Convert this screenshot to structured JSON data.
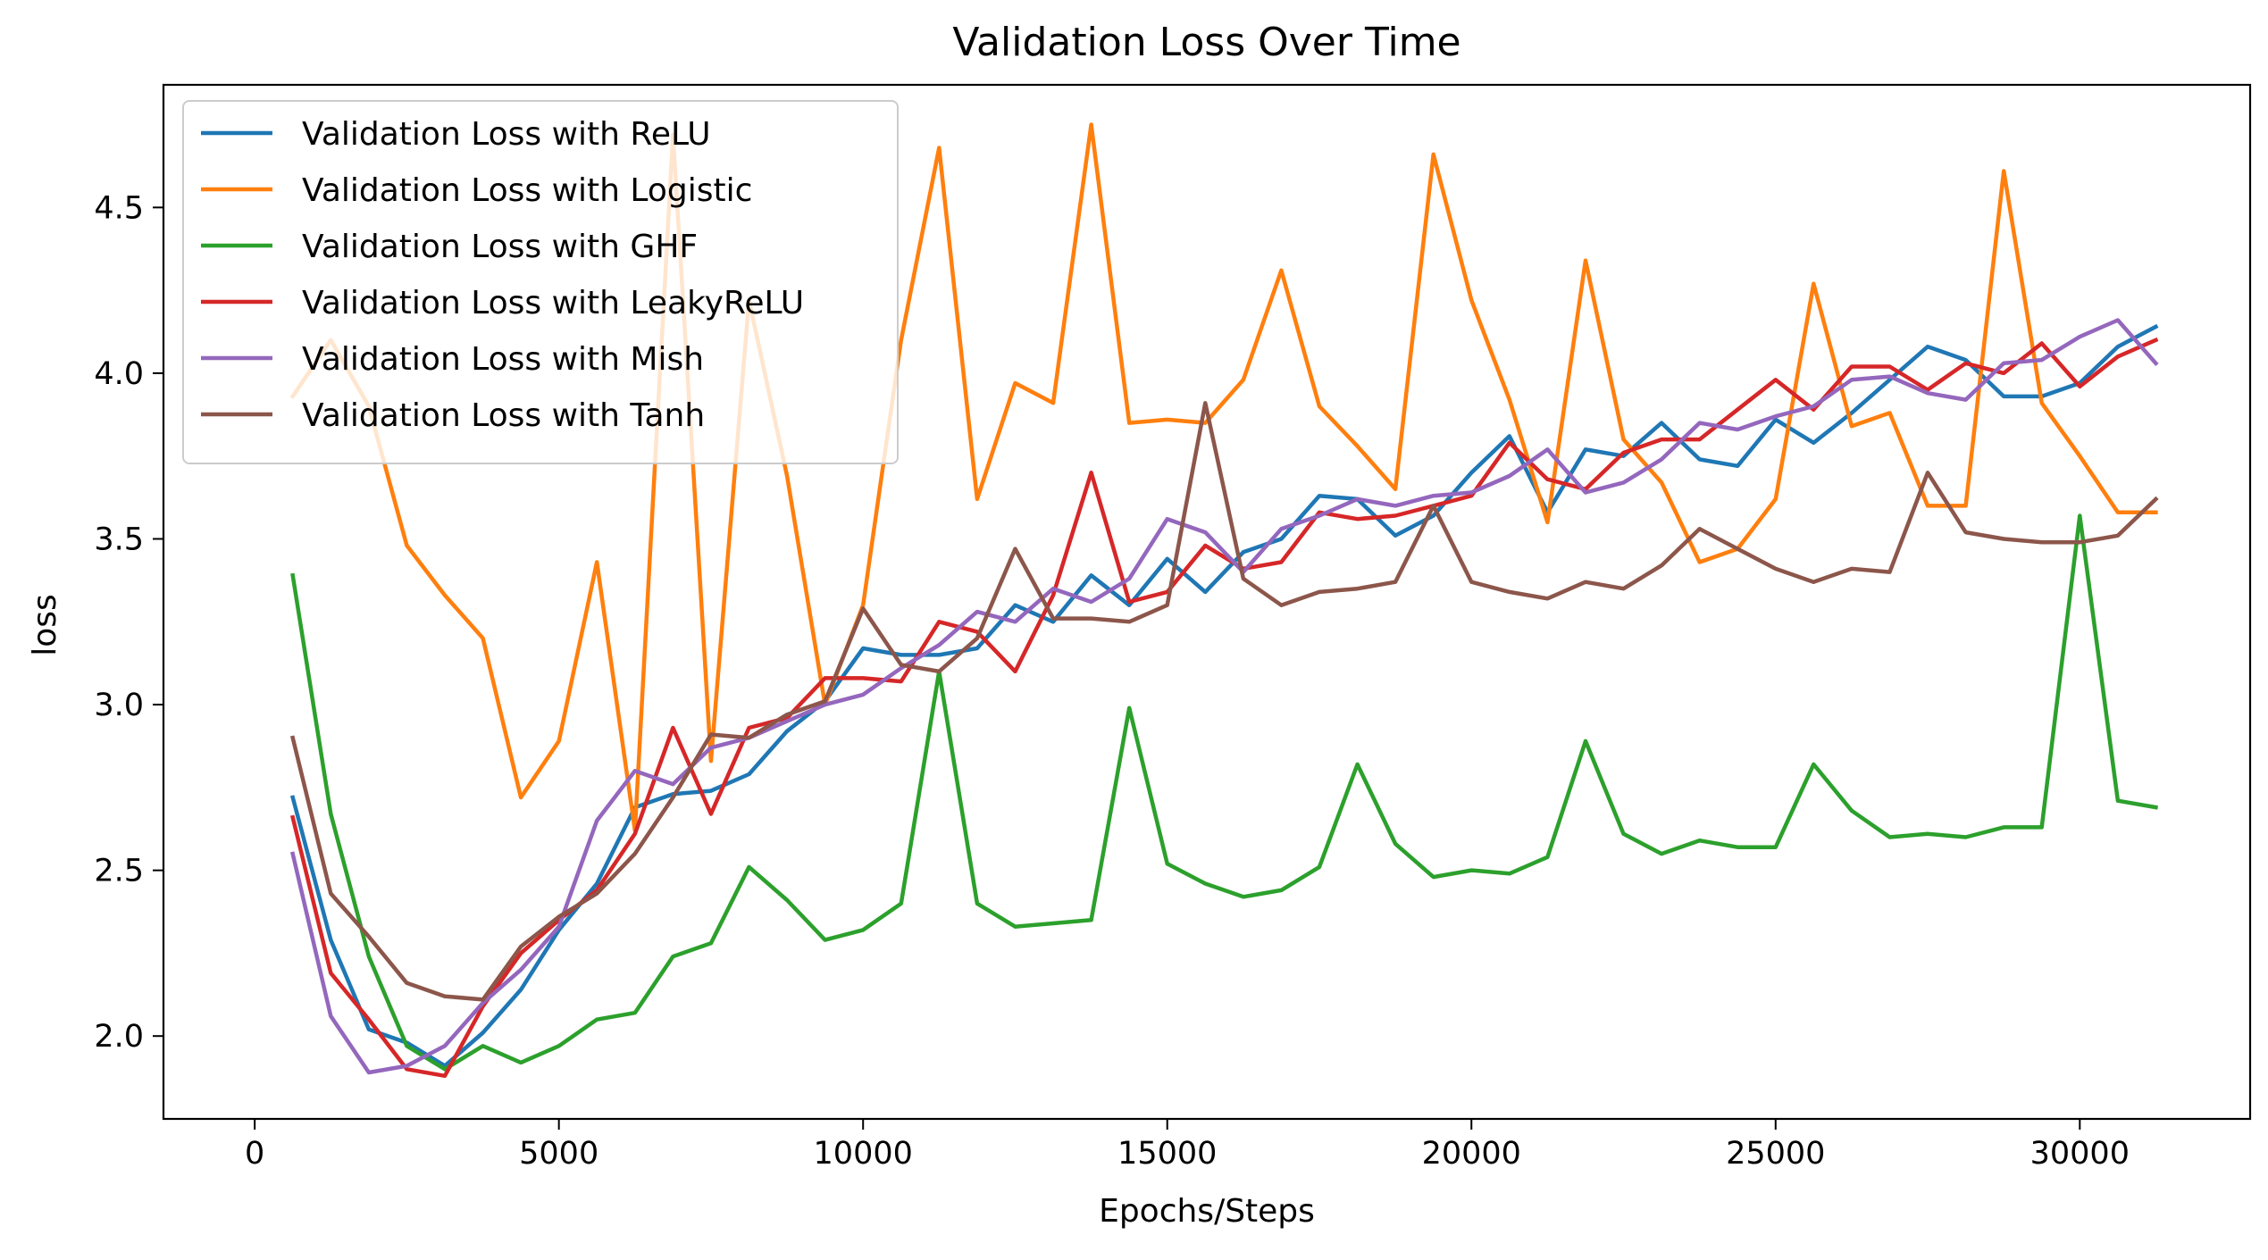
{
  "chart_data": {
    "type": "line",
    "title": "Validation Loss Over Time",
    "xlabel": "Epochs/Steps",
    "ylabel": "loss",
    "xlim": [
      -1500,
      32800
    ],
    "ylim": [
      1.75,
      4.87
    ],
    "xticks": [
      0,
      5000,
      10000,
      15000,
      20000,
      25000,
      30000
    ],
    "xtick_labels": [
      "0",
      "5000",
      "10000",
      "15000",
      "20000",
      "25000",
      "30000"
    ],
    "yticks": [
      2.0,
      2.5,
      3.0,
      3.5,
      4.0,
      4.5
    ],
    "ytick_labels": [
      "2.0",
      "2.5",
      "3.0",
      "3.5",
      "4.0",
      "4.5"
    ],
    "grid": false,
    "legend_position": "top-left",
    "x": [
      625,
      1250,
      1875,
      2500,
      3125,
      3750,
      4375,
      5000,
      5625,
      6250,
      6875,
      7500,
      8125,
      8750,
      9375,
      10000,
      10625,
      11250,
      11875,
      12500,
      13125,
      13750,
      14375,
      15000,
      15625,
      16250,
      16875,
      17500,
      18125,
      18750,
      19375,
      20000,
      20625,
      21250,
      21875,
      22500,
      23125,
      23750,
      24375,
      25000,
      25625,
      26250,
      26875,
      27500,
      28125,
      28750,
      29375,
      30000,
      30625,
      31250
    ],
    "series": [
      {
        "name": "Validation Loss with ReLU",
        "color": "#1f77b4",
        "values": [
          2.72,
          2.29,
          2.02,
          1.98,
          1.91,
          2.01,
          2.14,
          2.32,
          2.46,
          2.69,
          2.73,
          2.74,
          2.79,
          2.92,
          3.01,
          3.17,
          3.15,
          3.15,
          3.17,
          3.3,
          3.25,
          3.39,
          3.3,
          3.44,
          3.34,
          3.46,
          3.5,
          3.63,
          3.62,
          3.51,
          3.57,
          3.7,
          3.81,
          3.58,
          3.77,
          3.75,
          3.85,
          3.74,
          3.72,
          3.86,
          3.79,
          3.88,
          3.98,
          4.08,
          4.04,
          3.93,
          3.93,
          3.97,
          4.08,
          4.14
        ]
      },
      {
        "name": "Validation Loss with Logistic",
        "color": "#ff7f0e",
        "values": [
          3.93,
          4.1,
          3.9,
          3.48,
          3.33,
          3.2,
          2.72,
          2.89,
          3.43,
          2.62,
          4.72,
          2.83,
          4.22,
          3.69,
          3.0,
          3.3,
          4.1,
          4.68,
          3.62,
          3.97,
          3.91,
          4.75,
          3.85,
          3.86,
          3.85,
          3.98,
          4.31,
          3.9,
          3.78,
          3.65,
          4.66,
          4.22,
          3.92,
          3.55,
          4.34,
          3.8,
          3.67,
          3.43,
          3.47,
          3.62,
          4.27,
          3.84,
          3.88,
          3.6,
          3.6,
          4.61,
          3.91,
          3.75,
          3.58,
          3.58
        ]
      },
      {
        "name": "Validation Loss with GHF",
        "color": "#2ca02c",
        "values": [
          3.39,
          2.67,
          2.24,
          1.97,
          1.9,
          1.97,
          1.92,
          1.97,
          2.05,
          2.07,
          2.24,
          2.28,
          2.51,
          2.41,
          2.29,
          2.32,
          2.4,
          3.1,
          2.4,
          2.33,
          2.34,
          2.35,
          2.99,
          2.52,
          2.46,
          2.42,
          2.44,
          2.51,
          2.82,
          2.58,
          2.48,
          2.5,
          2.49,
          2.54,
          2.89,
          2.61,
          2.55,
          2.59,
          2.57,
          2.57,
          2.82,
          2.68,
          2.6,
          2.61,
          2.6,
          2.63,
          2.63,
          3.57,
          2.71,
          2.69
        ]
      },
      {
        "name": "Validation Loss with LeakyReLU",
        "color": "#d62728",
        "values": [
          2.66,
          2.19,
          2.05,
          1.9,
          1.88,
          2.09,
          2.25,
          2.35,
          2.44,
          2.61,
          2.93,
          2.67,
          2.93,
          2.96,
          3.08,
          3.08,
          3.07,
          3.25,
          3.22,
          3.1,
          3.33,
          3.7,
          3.31,
          3.34,
          3.48,
          3.41,
          3.43,
          3.58,
          3.56,
          3.57,
          3.6,
          3.63,
          3.79,
          3.68,
          3.65,
          3.76,
          3.8,
          3.8,
          3.89,
          3.98,
          3.89,
          4.02,
          4.02,
          3.95,
          4.03,
          4.0,
          4.09,
          3.96,
          4.05,
          4.1
        ]
      },
      {
        "name": "Validation Loss with Mish",
        "color": "#9467bd",
        "values": [
          2.55,
          2.06,
          1.89,
          1.91,
          1.97,
          2.1,
          2.2,
          2.33,
          2.65,
          2.8,
          2.76,
          2.87,
          2.9,
          2.95,
          3.0,
          3.03,
          3.11,
          3.18,
          3.28,
          3.25,
          3.35,
          3.31,
          3.38,
          3.56,
          3.52,
          3.4,
          3.53,
          3.57,
          3.62,
          3.6,
          3.63,
          3.64,
          3.69,
          3.77,
          3.64,
          3.67,
          3.74,
          3.85,
          3.83,
          3.87,
          3.9,
          3.98,
          3.99,
          3.94,
          3.92,
          4.03,
          4.04,
          4.11,
          4.16,
          4.03
        ]
      },
      {
        "name": "Validation Loss with Tanh",
        "color": "#8c564b",
        "values": [
          2.9,
          2.43,
          2.3,
          2.16,
          2.12,
          2.11,
          2.27,
          2.36,
          2.43,
          2.55,
          2.72,
          2.91,
          2.9,
          2.97,
          3.01,
          3.29,
          3.12,
          3.1,
          3.2,
          3.47,
          3.26,
          3.26,
          3.25,
          3.3,
          3.91,
          3.38,
          3.3,
          3.34,
          3.35,
          3.37,
          3.6,
          3.37,
          3.34,
          3.32,
          3.37,
          3.35,
          3.42,
          3.53,
          3.47,
          3.41,
          3.37,
          3.41,
          3.4,
          3.7,
          3.52,
          3.5,
          3.49,
          3.49,
          3.51,
          3.62
        ]
      }
    ]
  }
}
